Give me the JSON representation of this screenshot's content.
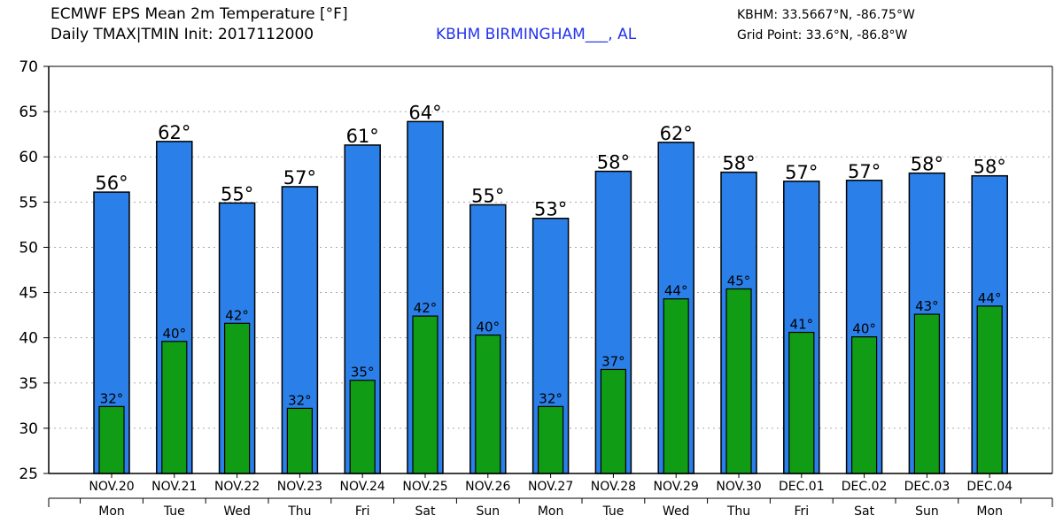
{
  "header": {
    "title_line1": "ECMWF EPS Mean 2m Temperature [°F]",
    "title_line2": "Daily TMAX|TMIN Init: 2017112000",
    "station": "KBHM BIRMINGHAM___, AL",
    "coords_station": "KBHM: 33.5667°N, -86.75°W",
    "coords_grid": "Grid Point: 33.6°N, -86.8°W"
  },
  "colors": {
    "tmax_fill": "#2b7fe8",
    "tmin_fill": "#109c14",
    "bar_stroke": "#000000",
    "grid": "#aaaaaa"
  },
  "chart_data": {
    "type": "bar",
    "title": "ECMWF EPS Mean 2m Temperature [°F]",
    "xlabel": "",
    "ylabel": "",
    "ylim": [
      25,
      70
    ],
    "yticks": [
      25,
      30,
      35,
      40,
      45,
      50,
      55,
      60,
      65,
      70
    ],
    "grid": true,
    "categories": [
      "NOV.20",
      "NOV.21",
      "NOV.22",
      "NOV.23",
      "NOV.24",
      "NOV.25",
      "NOV.26",
      "NOV.27",
      "NOV.28",
      "NOV.29",
      "NOV.30",
      "DEC.01",
      "DEC.02",
      "DEC.03",
      "DEC.04"
    ],
    "weekdays": [
      "Mon",
      "Tue",
      "Wed",
      "Thu",
      "Fri",
      "Sat",
      "Sun",
      "Mon",
      "Tue",
      "Wed",
      "Thu",
      "Fri",
      "Sat",
      "Sun",
      "Mon"
    ],
    "series": [
      {
        "name": "TMAX",
        "values": [
          56.1,
          61.7,
          54.9,
          56.7,
          61.3,
          63.9,
          54.7,
          53.2,
          58.4,
          61.6,
          58.3,
          57.3,
          57.4,
          58.2,
          57.9
        ],
        "labels": [
          "56°",
          "62°",
          "55°",
          "57°",
          "61°",
          "64°",
          "55°",
          "53°",
          "58°",
          "62°",
          "58°",
          "57°",
          "57°",
          "58°",
          "58°"
        ]
      },
      {
        "name": "TMIN",
        "values": [
          32.4,
          39.6,
          41.6,
          32.2,
          35.3,
          42.4,
          40.3,
          32.4,
          36.5,
          44.3,
          45.4,
          40.6,
          40.1,
          42.6,
          43.5
        ],
        "labels": [
          "32°",
          "40°",
          "42°",
          "32°",
          "35°",
          "42°",
          "40°",
          "32°",
          "37°",
          "44°",
          "45°",
          "41°",
          "40°",
          "43°",
          "44°"
        ]
      }
    ]
  }
}
